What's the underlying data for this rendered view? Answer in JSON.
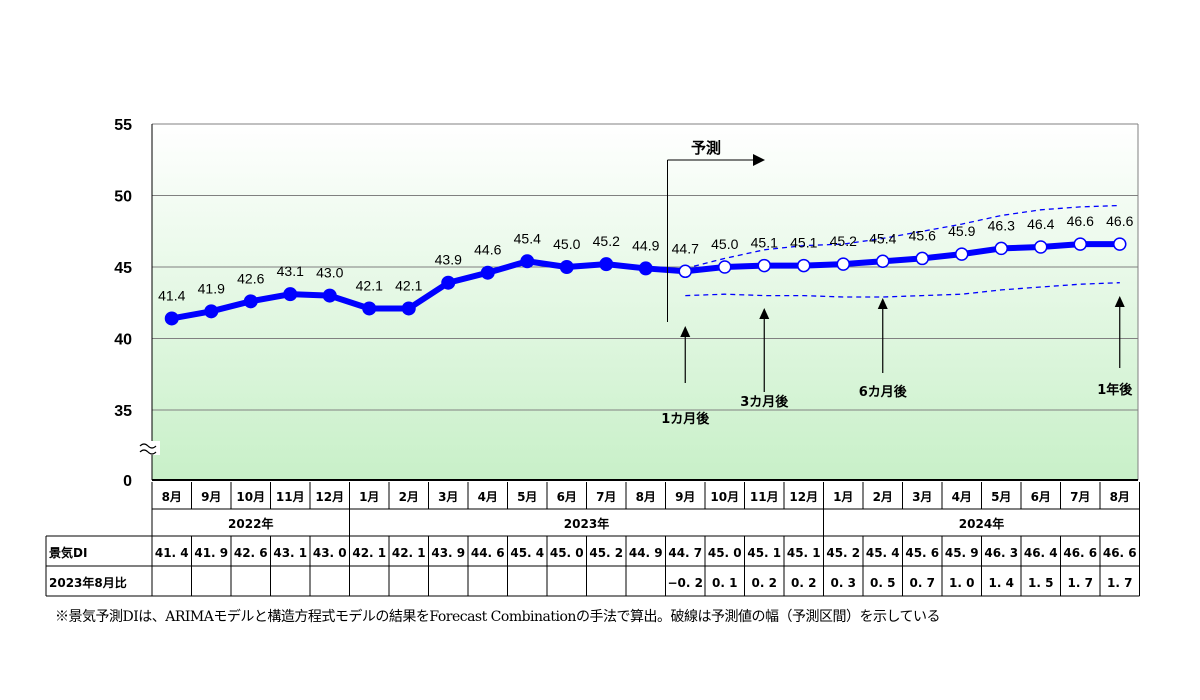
{
  "chart_data": {
    "type": "line",
    "y_ticks": [
      "55",
      "50",
      "45",
      "40",
      "35",
      "0"
    ],
    "ylim": [
      35,
      55
    ],
    "axis_break": true,
    "grid": true,
    "months": [
      "8月",
      "9月",
      "10月",
      "11月",
      "12月",
      "1月",
      "2月",
      "3月",
      "4月",
      "5月",
      "6月",
      "7月",
      "8月",
      "9月",
      "10月",
      "11月",
      "12月",
      "1月",
      "2月",
      "3月",
      "4月",
      "5月",
      "6月",
      "7月",
      "8月"
    ],
    "years": [
      {
        "label": "2022年",
        "start": 0,
        "end": 4
      },
      {
        "label": "2023年",
        "start": 5,
        "end": 16
      },
      {
        "label": "2024年",
        "start": 17,
        "end": 24
      }
    ],
    "series": [
      {
        "values": [
          41.4,
          41.9,
          42.6,
          43.1,
          43.0,
          42.1,
          42.1,
          43.9,
          44.6,
          45.4,
          45.0,
          45.2,
          44.9,
          44.7,
          45.0,
          45.1,
          45.1,
          45.2,
          45.4,
          45.6,
          45.9,
          46.3,
          46.4,
          46.6,
          46.6
        ],
        "labels": [
          "41.4",
          "41.9",
          "42.6",
          "43.1",
          "43.0",
          "42.1",
          "42.1",
          "43.9",
          "44.6",
          "45.4",
          "45.0",
          "45.2",
          "44.9",
          "44.7",
          "45.0",
          "45.1",
          "45.1",
          "45.2",
          "45.4",
          "45.6",
          "45.9",
          "46.3",
          "46.4",
          "46.6",
          "46.6"
        ],
        "forecast_from": 13
      }
    ],
    "upper_band": [
      44.9,
      45.6,
      46.2,
      46.5,
      46.6,
      47.0,
      47.5,
      48.0,
      48.6,
      49.0,
      49.2,
      49.3
    ],
    "lower_band": [
      43.0,
      43.1,
      43.0,
      43.0,
      42.9,
      42.9,
      43.0,
      43.1,
      43.4,
      43.6,
      43.8,
      43.9
    ],
    "forecast_label": "予測",
    "horizon_annotations": [
      {
        "label": "1カ月後",
        "index": 13
      },
      {
        "label": "3カ月後",
        "index": 15
      },
      {
        "label": "6カ月後",
        "index": 18
      },
      {
        "label": "1年後",
        "index": 24
      }
    ],
    "colors": {
      "line": "#0000ff",
      "band": "#0000ff",
      "plot_top": "#ffffff",
      "plot_bottom": "#c8f0c8",
      "grid": "#808080"
    }
  },
  "table": {
    "row1_label": "景気DI",
    "row1": [
      "41. 4",
      "41. 9",
      "42. 6",
      "43. 1",
      "43. 0",
      "42. 1",
      "42. 1",
      "43. 9",
      "44. 6",
      "45. 4",
      "45. 0",
      "45. 2",
      "44. 9",
      "44. 7",
      "45. 0",
      "45. 1",
      "45. 1",
      "45. 2",
      "45. 4",
      "45. 6",
      "45. 9",
      "46. 3",
      "46. 4",
      "46. 6",
      "46. 6"
    ],
    "row2_label": "2023年8月比",
    "row2": [
      "",
      "",
      "",
      "",
      "",
      "",
      "",
      "",
      "",
      "",
      "",
      "",
      "",
      "−0. 2",
      "0. 1",
      "0. 2",
      "0. 2",
      "0. 3",
      "0. 5",
      "0. 7",
      "1. 0",
      "1. 4",
      "1. 5",
      "1. 7",
      "1. 7"
    ]
  },
  "footnote": "※景気予測DIは、ARIMAモデルと構造方程式モデルの結果をForecast Combinationの手法で算出。破線は予測値の幅（予測区間）を示している"
}
